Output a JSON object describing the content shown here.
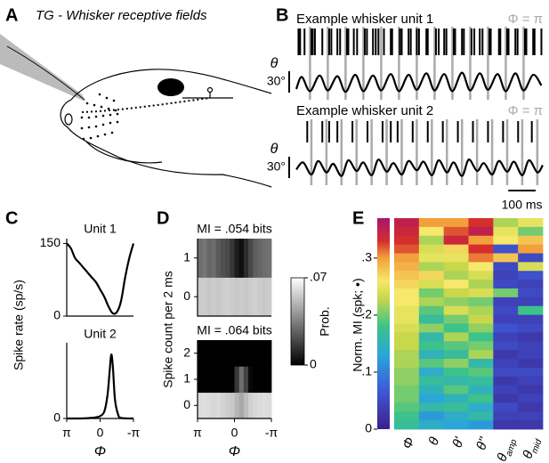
{
  "panel_labels": [
    "A",
    "B",
    "C",
    "D",
    "E"
  ],
  "diagram": {
    "title": "TG - Whisker receptive fields"
  },
  "chart_data": [
    {
      "type": "trace",
      "title": "Example whisker unit 1",
      "phase_label": "Φ = π",
      "ylabel": "θ",
      "xlim": [
        0,
        900
      ],
      "ylim": [
        -5,
        30
      ],
      "scalebar_y": {
        "value": 30,
        "label": "30°"
      },
      "spike_times": [
        8,
        14,
        30,
        55,
        60,
        68,
        95,
        120,
        128,
        150,
        160,
        185,
        190,
        210,
        222,
        250,
        258,
        280,
        290,
        300,
        320,
        345,
        350,
        378,
        385,
        410,
        418,
        440,
        448,
        475,
        480,
        510,
        520,
        540,
        548,
        575,
        580,
        605,
        612,
        640,
        650,
        670,
        680,
        705,
        710,
        740,
        745,
        770,
        775,
        800,
        808,
        835,
        840,
        865,
        870,
        895
      ],
      "phase_pi_times": [
        50,
        115,
        180,
        245,
        310,
        375,
        440,
        505,
        570,
        635,
        700,
        765,
        830
      ],
      "x": [
        0,
        20,
        50,
        85,
        115,
        150,
        180,
        215,
        245,
        280,
        310,
        345,
        375,
        410,
        440,
        475,
        505,
        540,
        570,
        605,
        635,
        670,
        700,
        735,
        765,
        800,
        830,
        865,
        895
      ],
      "values": [
        5,
        22,
        2,
        24,
        3,
        23,
        1,
        25,
        2,
        24,
        3,
        26,
        2,
        25,
        4,
        27,
        3,
        26,
        2,
        28,
        3,
        27,
        4,
        26,
        2,
        27,
        3,
        25,
        10
      ]
    },
    {
      "type": "trace",
      "title": "Example whisker unit 2",
      "phase_label": "Φ = π",
      "ylabel": "θ",
      "xlim": [
        0,
        900
      ],
      "ylim": [
        -5,
        30
      ],
      "scalebar_y": {
        "value": 30,
        "label": "30°"
      },
      "scalebar_x": {
        "value": 100,
        "label": "100 ms"
      },
      "spike_times": [
        40,
        95,
        120,
        150,
        205,
        260,
        315,
        345,
        370,
        425,
        480,
        535,
        590,
        645,
        700,
        755,
        810,
        860
      ],
      "phase_pi_times": [
        55,
        110,
        165,
        220,
        275,
        330,
        385,
        440,
        495,
        550,
        605,
        660,
        715,
        770,
        825,
        880
      ],
      "x": [
        0,
        25,
        55,
        80,
        110,
        135,
        165,
        190,
        220,
        245,
        275,
        300,
        330,
        355,
        385,
        410,
        440,
        465,
        495,
        520,
        550,
        575,
        605,
        630,
        660,
        685,
        715,
        740,
        770,
        795,
        825,
        850,
        880,
        900
      ],
      "values": [
        12,
        22,
        5,
        24,
        8,
        20,
        3,
        25,
        10,
        22,
        4,
        26,
        9,
        21,
        5,
        24,
        11,
        23,
        4,
        25,
        8,
        22,
        3,
        26,
        10,
        21,
        5,
        24,
        9,
        23,
        4,
        25,
        8,
        18
      ]
    },
    {
      "type": "line",
      "title": "Unit 1",
      "ylabel": "Spike rate (sp/s)",
      "xlim": [
        3.1416,
        -3.1416
      ],
      "ylim": [
        0,
        160
      ],
      "yticks": [
        0,
        150
      ],
      "x": [
        3.14,
        2.75,
        2.36,
        1.96,
        1.57,
        1.18,
        0.79,
        0.39,
        0,
        -0.39,
        -0.79,
        -1.18,
        -1.57,
        -1.96,
        -2.36,
        -2.75,
        -3.14
      ],
      "values": [
        150,
        140,
        120,
        110,
        100,
        90,
        80,
        70,
        55,
        40,
        20,
        6,
        8,
        30,
        80,
        120,
        150
      ]
    },
    {
      "type": "line",
      "title": "Unit 2",
      "xlabel": "Φ",
      "xlim": [
        3.1416,
        -3.1416
      ],
      "ylim": [
        0,
        160
      ],
      "yticks": [
        0
      ],
      "xticks": [
        {
          "value": 3.1416,
          "label": "π"
        },
        0,
        {
          "value": -3.1416,
          "label": "-π"
        }
      ],
      "x": [
        3.14,
        2,
        1,
        0.5,
        0,
        -0.4,
        -0.7,
        -0.9,
        -1.05,
        -1.2,
        -1.4,
        -1.7,
        -2,
        -3.14
      ],
      "values": [
        0,
        0,
        1,
        2,
        5,
        15,
        50,
        100,
        135,
        110,
        40,
        8,
        1,
        0
      ]
    },
    {
      "type": "heatmap",
      "title": "MI = .054 bits",
      "ylabel": "Spike count per 2 ms",
      "xlim": [
        3.1416,
        -3.1416
      ],
      "clim": [
        0,
        0.07
      ],
      "rows": [
        0,
        1
      ],
      "values": [
        [
          0.056,
          0.056,
          0.055,
          0.056,
          0.055,
          0.056,
          0.057,
          0.056,
          0.055,
          0.056,
          0.055,
          0.056,
          0.057,
          0.056,
          0.055,
          0.056
        ],
        [
          0.03,
          0.032,
          0.028,
          0.03,
          0.025,
          0.022,
          0.02,
          0.015,
          0.008,
          0.004,
          0.012,
          0.02,
          0.026,
          0.028,
          0.03,
          0.031
        ]
      ]
    },
    {
      "type": "heatmap",
      "title": "MI = .064 bits",
      "xlabel": "Φ",
      "xlim": [
        3.1416,
        -3.1416
      ],
      "clim": [
        0,
        0.07
      ],
      "xticks": [
        {
          "value": 3.1416,
          "label": "π"
        },
        0,
        {
          "value": -3.1416,
          "label": "-π"
        }
      ],
      "cticks": [
        0,
        {
          "value": 0.07,
          "label": ".07"
        }
      ],
      "clabel": "Prob.",
      "rows": [
        0,
        1,
        2
      ],
      "values": [
        [
          0.06,
          0.061,
          0.06,
          0.059,
          0.06,
          0.058,
          0.056,
          0.055,
          0.05,
          0.046,
          0.052,
          0.057,
          0.059,
          0.06,
          0.061,
          0.06
        ],
        [
          0,
          0,
          0,
          0,
          0,
          0,
          0,
          0,
          0.015,
          0.03,
          0.018,
          0.002,
          0,
          0,
          0,
          0
        ],
        [
          0,
          0,
          0,
          0,
          0,
          0,
          0,
          0,
          0,
          0,
          0,
          0,
          0,
          0,
          0,
          0
        ]
      ]
    },
    {
      "type": "mi_map",
      "ylabel": "Norm. MI (spk; •)",
      "ylim": [
        0,
        0.37
      ],
      "yticks": [
        0,
        {
          "value": 0.1,
          "label": ".1"
        },
        {
          "value": 0.2,
          "label": ".2"
        },
        {
          "value": 0.3,
          "label": ".3"
        }
      ],
      "colormap": [
        [
          0,
          "#3d1f8a"
        ],
        [
          0.07,
          "#3e5bd8"
        ],
        [
          0.13,
          "#2aa6d8"
        ],
        [
          0.18,
          "#3cc28a"
        ],
        [
          0.23,
          "#c8d84a"
        ],
        [
          0.26,
          "#f5e86a"
        ],
        [
          0.3,
          "#f2a03c"
        ],
        [
          0.33,
          "#d62d2d"
        ],
        [
          0.37,
          "#a8146e"
        ]
      ],
      "categories": [
        {
          "symbol": "Φ"
        },
        {
          "symbol": "θ"
        },
        {
          "symbol": "θ'"
        },
        {
          "symbol": "θ''"
        },
        {
          "symbol": "θ",
          "sub": "amp"
        },
        {
          "symbol": "θ",
          "sub": "mid"
        }
      ],
      "values": [
        [
          0.35,
          0.3,
          0.3,
          0.33,
          0.22,
          0.25
        ],
        [
          0.34,
          0.26,
          0.32,
          0.35,
          0.25,
          0.2
        ],
        [
          0.33,
          0.22,
          0.34,
          0.3,
          0.26,
          0.28
        ],
        [
          0.32,
          0.24,
          0.27,
          0.33,
          0.06,
          0.3
        ],
        [
          0.3,
          0.25,
          0.25,
          0.31,
          0.28,
          0.05
        ],
        [
          0.29,
          0.22,
          0.23,
          0.26,
          0.05,
          0.24
        ],
        [
          0.28,
          0.27,
          0.22,
          0.24,
          0.04,
          0.06
        ],
        [
          0.27,
          0.24,
          0.26,
          0.22,
          0.05,
          0.04
        ],
        [
          0.26,
          0.2,
          0.23,
          0.24,
          0.2,
          0.05
        ],
        [
          0.26,
          0.22,
          0.21,
          0.2,
          0.04,
          0.04
        ],
        [
          0.25,
          0.19,
          0.24,
          0.22,
          0.05,
          0.18
        ],
        [
          0.25,
          0.17,
          0.2,
          0.23,
          0.04,
          0.04
        ],
        [
          0.24,
          0.21,
          0.18,
          0.21,
          0.06,
          0.05
        ],
        [
          0.23,
          0.16,
          0.22,
          0.18,
          0.04,
          0.03
        ],
        [
          0.23,
          0.18,
          0.19,
          0.2,
          0.05,
          0.04
        ],
        [
          0.22,
          0.15,
          0.17,
          0.22,
          0.03,
          0.04
        ],
        [
          0.22,
          0.19,
          0.21,
          0.16,
          0.04,
          0.03
        ],
        [
          0.21,
          0.14,
          0.18,
          0.19,
          0.05,
          0.05
        ],
        [
          0.21,
          0.17,
          0.16,
          0.17,
          0.03,
          0.04
        ],
        [
          0.2,
          0.15,
          0.19,
          0.15,
          0.04,
          0.03
        ],
        [
          0.2,
          0.13,
          0.15,
          0.18,
          0.03,
          0.04
        ],
        [
          0.19,
          0.16,
          0.17,
          0.14,
          0.05,
          0.03
        ],
        [
          0.18,
          0.12,
          0.14,
          0.16,
          0.04,
          0.04
        ],
        [
          0.17,
          0.14,
          0.13,
          0.12,
          0.03,
          0.03
        ]
      ]
    }
  ]
}
